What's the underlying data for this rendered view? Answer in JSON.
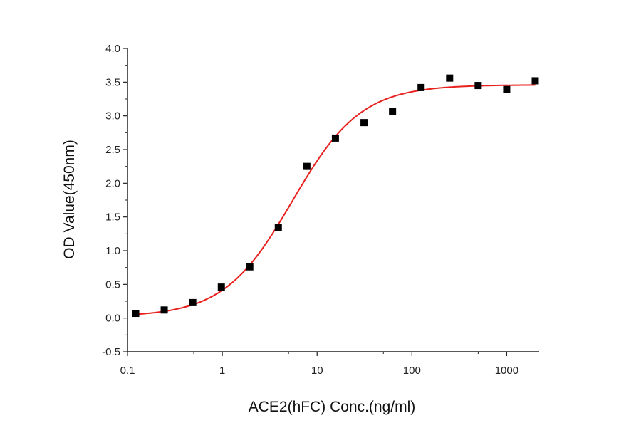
{
  "chart_data": {
    "type": "scatter",
    "title": "",
    "xlabel": "ACE2(hFC) Conc.(ng/ml)",
    "ylabel": "OD Value(450nm)",
    "x_scale": "log",
    "xlim": [
      0.1,
      2200
    ],
    "ylim": [
      -0.5,
      4.0
    ],
    "x_ticks": [
      "0.1",
      "1",
      "10",
      "100",
      "1000"
    ],
    "y_ticks": [
      "-0.5",
      "0.0",
      "0.5",
      "1.0",
      "1.5",
      "2.0",
      "2.5",
      "3.0",
      "3.5",
      "4.0"
    ],
    "grid": false,
    "series": [
      {
        "type": "scatter",
        "marker": "square",
        "color": "#000000",
        "x": [
          0.122,
          0.244,
          0.488,
          0.977,
          1.95,
          3.9,
          7.8,
          15.6,
          31.25,
          62.5,
          125,
          250,
          500,
          1000,
          2000
        ],
        "y": [
          0.07,
          0.12,
          0.23,
          0.46,
          0.76,
          1.34,
          2.25,
          2.67,
          2.9,
          3.07,
          3.42,
          3.56,
          3.45,
          3.39,
          3.52
        ]
      },
      {
        "type": "line",
        "fit": "four-parameter logistic",
        "color": "#e8201e",
        "bottom": 0.02,
        "top": 3.46,
        "ec50": 5.5,
        "hill": 1.2
      }
    ]
  }
}
